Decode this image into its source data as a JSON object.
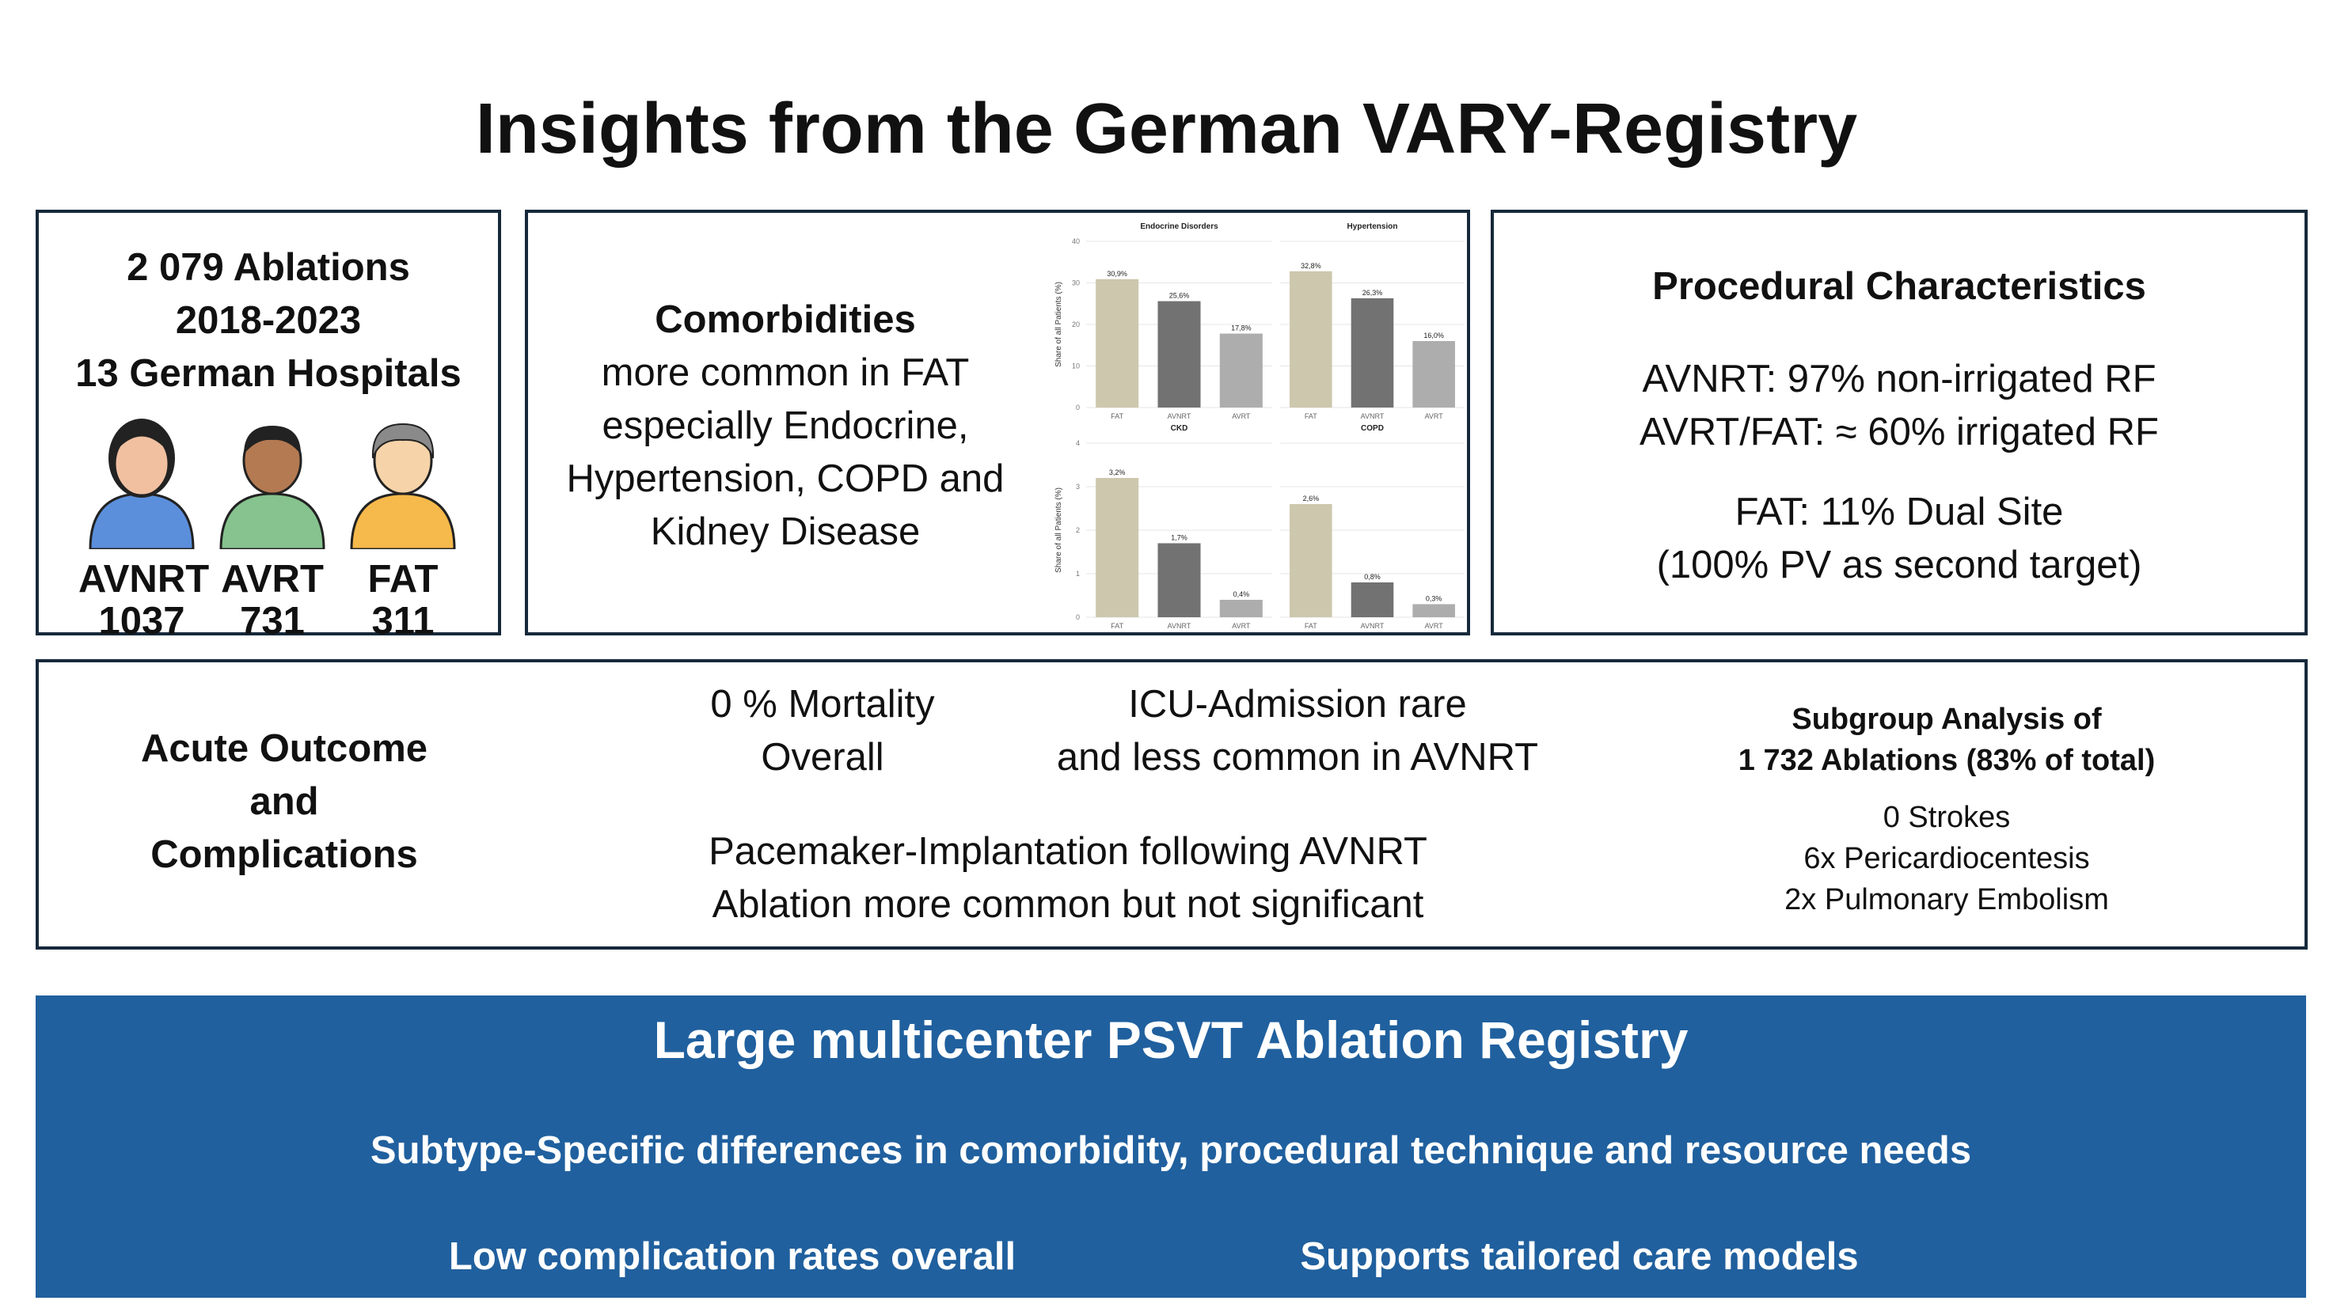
{
  "title": "Insights from the German VARY-Registry",
  "overview": {
    "lines": [
      "2 079 Ablations",
      "2018-2023",
      "13 German Hospitals"
    ],
    "groups": [
      {
        "name": "AVNRT",
        "count": "1037",
        "color": "#5b8fdc"
      },
      {
        "name": "AVRT",
        "count": "731",
        "color": "#86c38f"
      },
      {
        "name": "FAT",
        "count": "311",
        "color": "#f6b94b"
      }
    ]
  },
  "comorbidities": {
    "heading": "Comorbidities",
    "lines": [
      "more common in FAT",
      "especially Endocrine,",
      "Hypertension, COPD and",
      "Kidney Disease"
    ]
  },
  "chart_data": [
    {
      "type": "bar",
      "title": "Endocrine Disorders",
      "categories": [
        "FAT",
        "AVNRT",
        "AVRT"
      ],
      "values": [
        30.9,
        25.6,
        17.8
      ],
      "labels": [
        "30,9%",
        "25,6%",
        "17,8%"
      ],
      "ylabel": "Share of all Patients (%)",
      "ylim": [
        0,
        40
      ],
      "yticks": [
        "0",
        "10",
        "20",
        "30",
        "40"
      ]
    },
    {
      "type": "bar",
      "title": "Hypertension",
      "categories": [
        "FAT",
        "AVNRT",
        "AVRT"
      ],
      "values": [
        32.8,
        26.3,
        16.0
      ],
      "labels": [
        "32,8%",
        "26,3%",
        "16,0%"
      ],
      "ylim": [
        0,
        40
      ]
    },
    {
      "type": "bar",
      "title": "CKD",
      "categories": [
        "FAT",
        "AVNRT",
        "AVRT"
      ],
      "values": [
        3.2,
        1.7,
        0.4
      ],
      "labels": [
        "3,2%",
        "1,7%",
        "0,4%"
      ],
      "ylabel": "Share of all Patients (%)",
      "ylim": [
        0,
        4
      ],
      "yticks": [
        "0",
        "1",
        "2",
        "3",
        "4"
      ]
    },
    {
      "type": "bar",
      "title": "COPD",
      "categories": [
        "FAT",
        "AVNRT",
        "AVRT"
      ],
      "values": [
        2.6,
        0.8,
        0.3
      ],
      "labels": [
        "2,6%",
        "0,8%",
        "0,3%"
      ],
      "ylim": [
        0,
        4
      ]
    }
  ],
  "bar_colors": [
    "#cdc7ad",
    "#727272",
    "#adadad"
  ],
  "procedural": {
    "heading": "Procedural Characteristics",
    "lines": [
      "AVNRT: 97% non-irrigated RF",
      "AVRT/FAT: ≈ 60% irrigated RF"
    ],
    "lines2": [
      "FAT: 11% Dual Site",
      "(100% PV as second target)"
    ]
  },
  "outcome": {
    "heading": [
      "Acute Outcome",
      "and",
      "Complications"
    ],
    "mortality": [
      "0 % Mortality",
      "Overall"
    ],
    "icu": [
      "ICU-Admission rare",
      "and less common in AVNRT"
    ],
    "pacemaker": [
      "Pacemaker-Implantation following AVNRT",
      "Ablation more common but not significant"
    ],
    "subgroup": {
      "heading": [
        "Subgroup Analysis of",
        "1 732  Ablations (83% of total)"
      ],
      "items": [
        "0 Strokes",
        "6x Pericardiocentesis",
        "2x Pulmonary Embolism"
      ]
    }
  },
  "banner": {
    "title": "Large multicenter PSVT Ablation Registry",
    "line": "Subtype-Specific differences in comorbidity, procedural technique and resource needs",
    "left": "Low complication rates overall",
    "right": "Supports tailored care models",
    "color": "#20609e"
  }
}
